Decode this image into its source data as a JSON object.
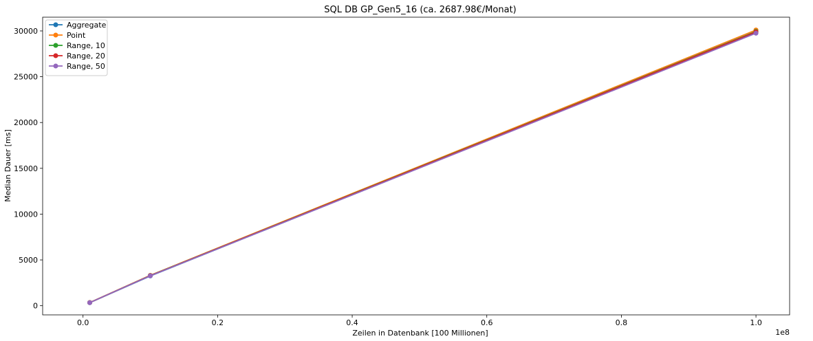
{
  "chart_data": {
    "type": "line",
    "title": "SQL DB GP_Gen5_16 (ca. 2687.98€/Monat)",
    "xlabel": "Zeilen in Datenbank [100 Millionen]",
    "ylabel": "Median Dauer [ms]",
    "x_offset_label": "1e8",
    "xlim": [
      -6000000,
      105000000
    ],
    "ylim": [
      -1000,
      31500
    ],
    "x_ticks": [
      0,
      20000000,
      40000000,
      60000000,
      80000000,
      100000000
    ],
    "x_tick_labels": [
      "0.0",
      "0.2",
      "0.4",
      "0.6",
      "0.8",
      "1.0"
    ],
    "y_ticks": [
      0,
      5000,
      10000,
      15000,
      20000,
      25000,
      30000
    ],
    "y_tick_labels": [
      "0",
      "5000",
      "10000",
      "15000",
      "20000",
      "25000",
      "30000"
    ],
    "grid": false,
    "legend_position": "top-left",
    "x": [
      1000000,
      10000000,
      100000000
    ],
    "series": [
      {
        "name": "Aggregate",
        "color": "#1f77b4",
        "values": [
          330,
          3250,
          29800
        ]
      },
      {
        "name": "Point",
        "color": "#ff7f0e",
        "values": [
          345,
          3320,
          30100
        ]
      },
      {
        "name": "Range, 10",
        "color": "#2ca02c",
        "values": [
          340,
          3300,
          29950
        ]
      },
      {
        "name": "Range, 20",
        "color": "#d62728",
        "values": [
          338,
          3290,
          29900
        ]
      },
      {
        "name": "Range, 50",
        "color": "#9467bd",
        "values": [
          335,
          3270,
          29750
        ]
      }
    ]
  }
}
